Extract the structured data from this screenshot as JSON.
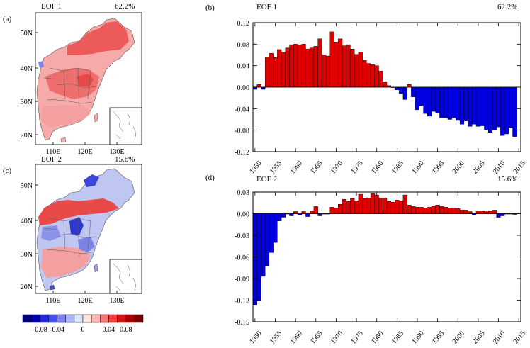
{
  "colors": {
    "positive": "#e00000",
    "negative": "#0000e0",
    "land_pos": "#f08080",
    "land_neg": "#9090e0",
    "border": "#333333"
  },
  "maps": {
    "a": {
      "panel": "(a)",
      "title": "EOF 1",
      "pct": "62.2%",
      "lat_ticks": [
        "50N",
        "40N",
        "30N",
        "20N"
      ],
      "lon_ticks": [
        "110E",
        "120E",
        "130E"
      ]
    },
    "c": {
      "panel": "(c)",
      "title": "EOF 2",
      "pct": "15.6%",
      "lat_ticks": [
        "50N",
        "40N",
        "30N",
        "20N"
      ],
      "lon_ticks": [
        "110E",
        "120E",
        "130E"
      ]
    },
    "colorbar": {
      "labels": [
        "-0.08",
        "-0.04",
        "0",
        "0.04",
        "0.08"
      ],
      "colors": [
        "#00007a",
        "#0000b4",
        "#1e28dc",
        "#4650f0",
        "#7882f5",
        "#aab4fa",
        "#dce1ff",
        "#ffe1e1",
        "#ffb4b4",
        "#f57878",
        "#f03c3c",
        "#d21414",
        "#aa0000",
        "#780000"
      ]
    }
  },
  "chart_data": [
    {
      "id": "b",
      "type": "bar",
      "panel": "(b)",
      "title": "EOF 1",
      "pct": "62.2%",
      "ylim": [
        -0.12,
        0.12
      ],
      "y_ticks": [
        "0.12",
        "0.08",
        "0.04",
        "0.00",
        "-0.04",
        "-0.08",
        "-0.12"
      ],
      "x_ticks": [
        "1950",
        "1955",
        "1960",
        "1965",
        "1970",
        "1975",
        "1980",
        "1985",
        "1990",
        "1995",
        "2000",
        "2005",
        "2010",
        "2015"
      ],
      "x": [
        1950,
        1951,
        1952,
        1953,
        1954,
        1955,
        1956,
        1957,
        1958,
        1959,
        1960,
        1961,
        1962,
        1963,
        1964,
        1965,
        1966,
        1967,
        1968,
        1969,
        1970,
        1971,
        1972,
        1973,
        1974,
        1975,
        1976,
        1977,
        1978,
        1979,
        1980,
        1981,
        1982,
        1983,
        1984,
        1985,
        1986,
        1987,
        1988,
        1989,
        1990,
        1991,
        1992,
        1993,
        1994,
        1995,
        1996,
        1997,
        1998,
        1999,
        2000,
        2001,
        2002,
        2003,
        2004,
        2005,
        2006,
        2007,
        2008,
        2009,
        2010,
        2011,
        2012,
        2013,
        2014
      ],
      "values": [
        -0.004,
        0.005,
        -0.004,
        0.056,
        0.063,
        0.055,
        0.07,
        0.065,
        0.073,
        0.079,
        0.08,
        0.079,
        0.08,
        0.071,
        0.073,
        0.076,
        0.09,
        0.06,
        0.058,
        0.103,
        0.084,
        0.09,
        0.077,
        0.079,
        0.071,
        0.061,
        0.065,
        0.05,
        0.044,
        0.042,
        0.04,
        0.03,
        0.01,
        0.003,
        0.0,
        -0.005,
        -0.012,
        -0.023,
        0.005,
        -0.018,
        -0.042,
        -0.034,
        -0.049,
        -0.054,
        -0.045,
        -0.048,
        -0.057,
        -0.057,
        -0.06,
        -0.057,
        -0.062,
        -0.069,
        -0.063,
        -0.073,
        -0.069,
        -0.073,
        -0.072,
        -0.079,
        -0.084,
        -0.08,
        -0.074,
        -0.09,
        -0.087,
        -0.075,
        -0.092
      ]
    },
    {
      "id": "d",
      "type": "bar",
      "panel": "(d)",
      "title": "EOF 2",
      "pct": "15.6%",
      "ylim": [
        -0.15,
        0.03
      ],
      "y_ticks": [
        "0.03",
        "0.00",
        "-0.03",
        "-0.06",
        "-0.09",
        "-0.12",
        "-0.15"
      ],
      "x_ticks": [
        "1950",
        "1955",
        "1960",
        "1965",
        "1970",
        "1975",
        "1980",
        "1985",
        "1990",
        "1995",
        "2000",
        "2005",
        "2010",
        "2015"
      ],
      "x": [
        1950,
        1951,
        1952,
        1953,
        1954,
        1955,
        1956,
        1957,
        1958,
        1959,
        1960,
        1961,
        1962,
        1963,
        1964,
        1965,
        1966,
        1967,
        1968,
        1969,
        1970,
        1971,
        1972,
        1973,
        1974,
        1975,
        1976,
        1977,
        1978,
        1979,
        1980,
        1981,
        1982,
        1983,
        1984,
        1985,
        1986,
        1987,
        1988,
        1989,
        1990,
        1991,
        1992,
        1993,
        1994,
        1995,
        1996,
        1997,
        1998,
        1999,
        2000,
        2001,
        2002,
        2003,
        2004,
        2005,
        2006,
        2007,
        2008,
        2009,
        2010,
        2011,
        2012,
        2013,
        2014
      ],
      "values": [
        -0.127,
        -0.121,
        -0.087,
        -0.073,
        -0.054,
        -0.04,
        -0.01,
        -0.005,
        0.0,
        -0.003,
        0.003,
        -0.002,
        0.003,
        -0.004,
        0.004,
        0.01,
        -0.003,
        0.0,
        0.0,
        0.009,
        0.008,
        0.013,
        0.02,
        0.017,
        0.021,
        0.018,
        0.027,
        0.021,
        0.022,
        0.028,
        0.026,
        0.022,
        0.022,
        0.017,
        0.016,
        0.019,
        0.018,
        0.026,
        0.012,
        0.01,
        0.009,
        0.009,
        0.008,
        0.009,
        0.011,
        0.012,
        0.01,
        0.009,
        0.008,
        0.008,
        0.007,
        0.005,
        0.005,
        0.003,
        -0.002,
        0.004,
        0.004,
        0.003,
        0.004,
        0.005,
        -0.005,
        -0.003,
        0.0,
        0.0,
        -0.001
      ]
    }
  ]
}
